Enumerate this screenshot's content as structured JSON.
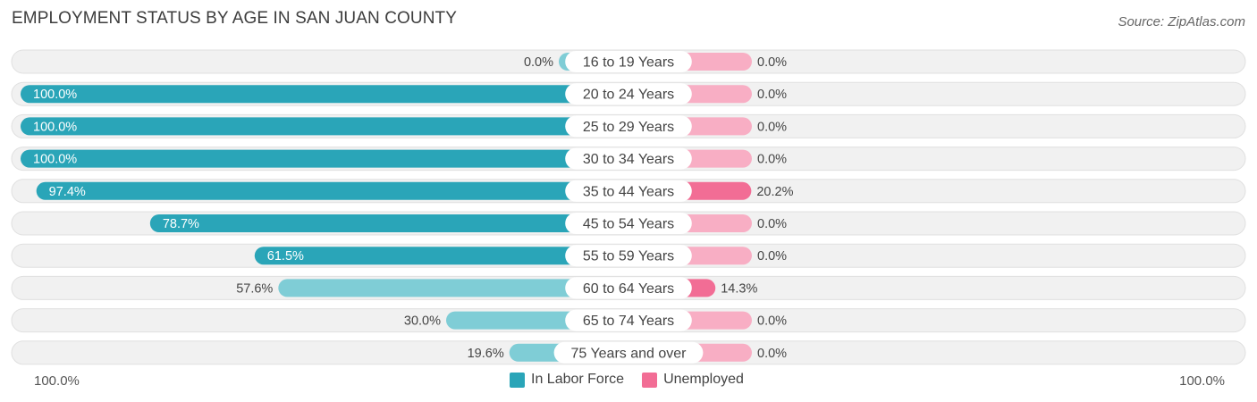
{
  "title": "EMPLOYMENT STATUS BY AGE IN SAN JUAN COUNTY",
  "source": "Source: ZipAtlas.com",
  "colors": {
    "labor_strong": "#2aa5b8",
    "labor_light": "#7fcdd6",
    "unemp_strong": "#f26d95",
    "unemp_light": "#f8aec4",
    "row_bg": "#f1f1f1",
    "row_border": "#e0e0e0"
  },
  "axis": {
    "left_label": "100.0%",
    "right_label": "100.0%"
  },
  "legend": [
    {
      "label": "In Labor Force",
      "color": "#2aa5b8"
    },
    {
      "label": "Unemployed",
      "color": "#f26d95"
    }
  ],
  "chart_data": {
    "type": "bar",
    "orientation": "horizontal-diverging",
    "title": "EMPLOYMENT STATUS BY AGE IN SAN JUAN COUNTY",
    "categories": [
      "16 to 19 Years",
      "20 to 24 Years",
      "25 to 29 Years",
      "30 to 34 Years",
      "35 to 44 Years",
      "45 to 54 Years",
      "55 to 59 Years",
      "60 to 64 Years",
      "65 to 74 Years",
      "75 Years and over"
    ],
    "series": [
      {
        "name": "In Labor Force",
        "values": [
          0.0,
          100.0,
          100.0,
          100.0,
          97.4,
          78.7,
          61.5,
          57.6,
          30.0,
          19.6
        ],
        "labels": [
          "0.0%",
          "100.0%",
          "100.0%",
          "100.0%",
          "97.4%",
          "78.7%",
          "61.5%",
          "57.6%",
          "30.0%",
          "19.6%"
        ]
      },
      {
        "name": "Unemployed",
        "values": [
          0.0,
          0.0,
          0.0,
          0.0,
          20.2,
          0.0,
          0.0,
          14.3,
          0.0,
          0.0
        ],
        "labels": [
          "0.0%",
          "0.0%",
          "0.0%",
          "0.0%",
          "20.2%",
          "0.0%",
          "0.0%",
          "14.3%",
          "0.0%",
          "0.0%"
        ]
      }
    ],
    "xlim": [
      0,
      100
    ],
    "legend_position": "bottom-center"
  }
}
